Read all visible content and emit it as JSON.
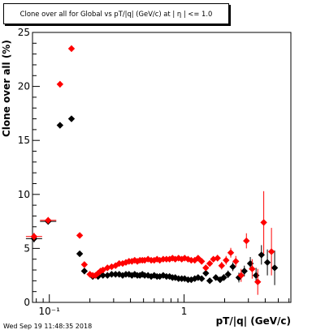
{
  "chart_data": {
    "type": "scatter",
    "title": "Clone  over all for Global vs pT/|q| (GeV/c) at |  η | <= 1.0",
    "xlabel": "pT/|q| (GeV/c)",
    "ylabel": "Clone  over all (%)",
    "x_scale": "log",
    "xlim": [
      0.075,
      6.2
    ],
    "ylim": [
      0,
      25
    ],
    "y_ticks": [
      "0",
      "5",
      "10",
      "15",
      "20",
      "25"
    ],
    "x_tick_labels": [
      "10⁻¹",
      "1"
    ],
    "grid": false,
    "legend": "none",
    "series": [
      {
        "color": "#000000",
        "points": [
          [
            0.077,
            5.9
          ],
          [
            0.098,
            7.5
          ],
          [
            0.12,
            16.4
          ],
          [
            0.146,
            17.0
          ],
          [
            0.168,
            4.5
          ],
          [
            0.182,
            2.9
          ],
          [
            0.21,
            2.4
          ],
          [
            0.23,
            2.4
          ],
          [
            0.25,
            2.5
          ],
          [
            0.27,
            2.5
          ],
          [
            0.29,
            2.6
          ],
          [
            0.31,
            2.6
          ],
          [
            0.33,
            2.6
          ],
          [
            0.35,
            2.5
          ],
          [
            0.37,
            2.6
          ],
          [
            0.39,
            2.6
          ],
          [
            0.41,
            2.5
          ],
          [
            0.43,
            2.6
          ],
          [
            0.45,
            2.5
          ],
          [
            0.47,
            2.5
          ],
          [
            0.49,
            2.6
          ],
          [
            0.51,
            2.5
          ],
          [
            0.54,
            2.5
          ],
          [
            0.57,
            2.4
          ],
          [
            0.6,
            2.5
          ],
          [
            0.63,
            2.4
          ],
          [
            0.66,
            2.4
          ],
          [
            0.7,
            2.5
          ],
          [
            0.74,
            2.4
          ],
          [
            0.78,
            2.4
          ],
          [
            0.82,
            2.3
          ],
          [
            0.86,
            2.3
          ],
          [
            0.91,
            2.2
          ],
          [
            0.96,
            2.2
          ],
          [
            1.01,
            2.2
          ],
          [
            1.07,
            2.1
          ],
          [
            1.13,
            2.1
          ],
          [
            1.2,
            2.2
          ],
          [
            1.27,
            2.3
          ],
          [
            1.35,
            2.2
          ],
          [
            1.45,
            2.7
          ],
          [
            1.55,
            2.0
          ],
          [
            1.72,
            2.3
          ],
          [
            1.85,
            2.1
          ],
          [
            1.97,
            2.3
          ],
          [
            2.12,
            2.6
          ],
          [
            2.3,
            3.3
          ],
          [
            2.55,
            2.3
          ],
          [
            2.8,
            2.9
          ],
          [
            3.1,
            3.6
          ],
          [
            3.42,
            2.5
          ],
          [
            3.75,
            4.4
          ],
          [
            4.15,
            3.7
          ],
          [
            4.7,
            3.2
          ]
        ],
        "errors": [
          0.35,
          0.3,
          0.25,
          0.25,
          0.15,
          0.12,
          0.08,
          0.08,
          0.08,
          0.08,
          0.08,
          0.08,
          0.08,
          0.08,
          0.08,
          0.08,
          0.08,
          0.08,
          0.08,
          0.08,
          0.08,
          0.08,
          0.08,
          0.08,
          0.08,
          0.08,
          0.08,
          0.08,
          0.08,
          0.08,
          0.1,
          0.1,
          0.1,
          0.1,
          0.1,
          0.1,
          0.12,
          0.12,
          0.15,
          0.15,
          0.2,
          0.2,
          0.25,
          0.3,
          0.3,
          0.35,
          0.4,
          0.45,
          0.5,
          0.6,
          0.7,
          0.9,
          1.2,
          1.6
        ]
      },
      {
        "color": "#ff0000",
        "points": [
          [
            0.077,
            6.1
          ],
          [
            0.098,
            7.6
          ],
          [
            0.12,
            20.2
          ],
          [
            0.146,
            23.5
          ],
          [
            0.168,
            6.2
          ],
          [
            0.182,
            3.5
          ],
          [
            0.2,
            2.6
          ],
          [
            0.21,
            2.5
          ],
          [
            0.22,
            2.5
          ],
          [
            0.23,
            2.7
          ],
          [
            0.24,
            2.9
          ],
          [
            0.25,
            3.0
          ],
          [
            0.27,
            3.2
          ],
          [
            0.29,
            3.3
          ],
          [
            0.31,
            3.4
          ],
          [
            0.33,
            3.6
          ],
          [
            0.35,
            3.6
          ],
          [
            0.37,
            3.7
          ],
          [
            0.39,
            3.8
          ],
          [
            0.41,
            3.8
          ],
          [
            0.43,
            3.9
          ],
          [
            0.45,
            3.8
          ],
          [
            0.47,
            3.9
          ],
          [
            0.49,
            3.9
          ],
          [
            0.51,
            3.9
          ],
          [
            0.54,
            4.0
          ],
          [
            0.57,
            3.9
          ],
          [
            0.6,
            3.9
          ],
          [
            0.63,
            4.0
          ],
          [
            0.66,
            3.9
          ],
          [
            0.7,
            4.0
          ],
          [
            0.74,
            4.0
          ],
          [
            0.78,
            4.0
          ],
          [
            0.82,
            4.1
          ],
          [
            0.86,
            4.0
          ],
          [
            0.91,
            4.1
          ],
          [
            0.96,
            4.0
          ],
          [
            1.01,
            4.1
          ],
          [
            1.07,
            4.0
          ],
          [
            1.13,
            3.9
          ],
          [
            1.2,
            3.9
          ],
          [
            1.27,
            4.1
          ],
          [
            1.35,
            3.8
          ],
          [
            1.45,
            3.2
          ],
          [
            1.55,
            3.6
          ],
          [
            1.65,
            4.0
          ],
          [
            1.77,
            4.1
          ],
          [
            1.9,
            3.4
          ],
          [
            2.05,
            3.9
          ],
          [
            2.22,
            4.6
          ],
          [
            2.42,
            3.8
          ],
          [
            2.65,
            2.5
          ],
          [
            2.9,
            5.7
          ],
          [
            3.2,
            3.1
          ],
          [
            3.52,
            1.9
          ],
          [
            3.9,
            7.4
          ],
          [
            4.45,
            4.7
          ]
        ],
        "errors": [
          0.35,
          0.3,
          0.3,
          0.3,
          0.15,
          0.12,
          0.08,
          0.08,
          0.08,
          0.08,
          0.08,
          0.08,
          0.08,
          0.08,
          0.08,
          0.08,
          0.08,
          0.08,
          0.08,
          0.08,
          0.08,
          0.08,
          0.08,
          0.08,
          0.08,
          0.08,
          0.08,
          0.08,
          0.08,
          0.08,
          0.1,
          0.1,
          0.1,
          0.1,
          0.1,
          0.1,
          0.12,
          0.12,
          0.12,
          0.12,
          0.15,
          0.15,
          0.15,
          0.2,
          0.2,
          0.25,
          0.3,
          0.35,
          0.4,
          0.45,
          0.5,
          0.6,
          0.7,
          0.9,
          1.2,
          2.9,
          2.2
        ]
      }
    ]
  },
  "footer": {
    "timestamp": "Wed Sep 19 11:48:35 2018"
  }
}
